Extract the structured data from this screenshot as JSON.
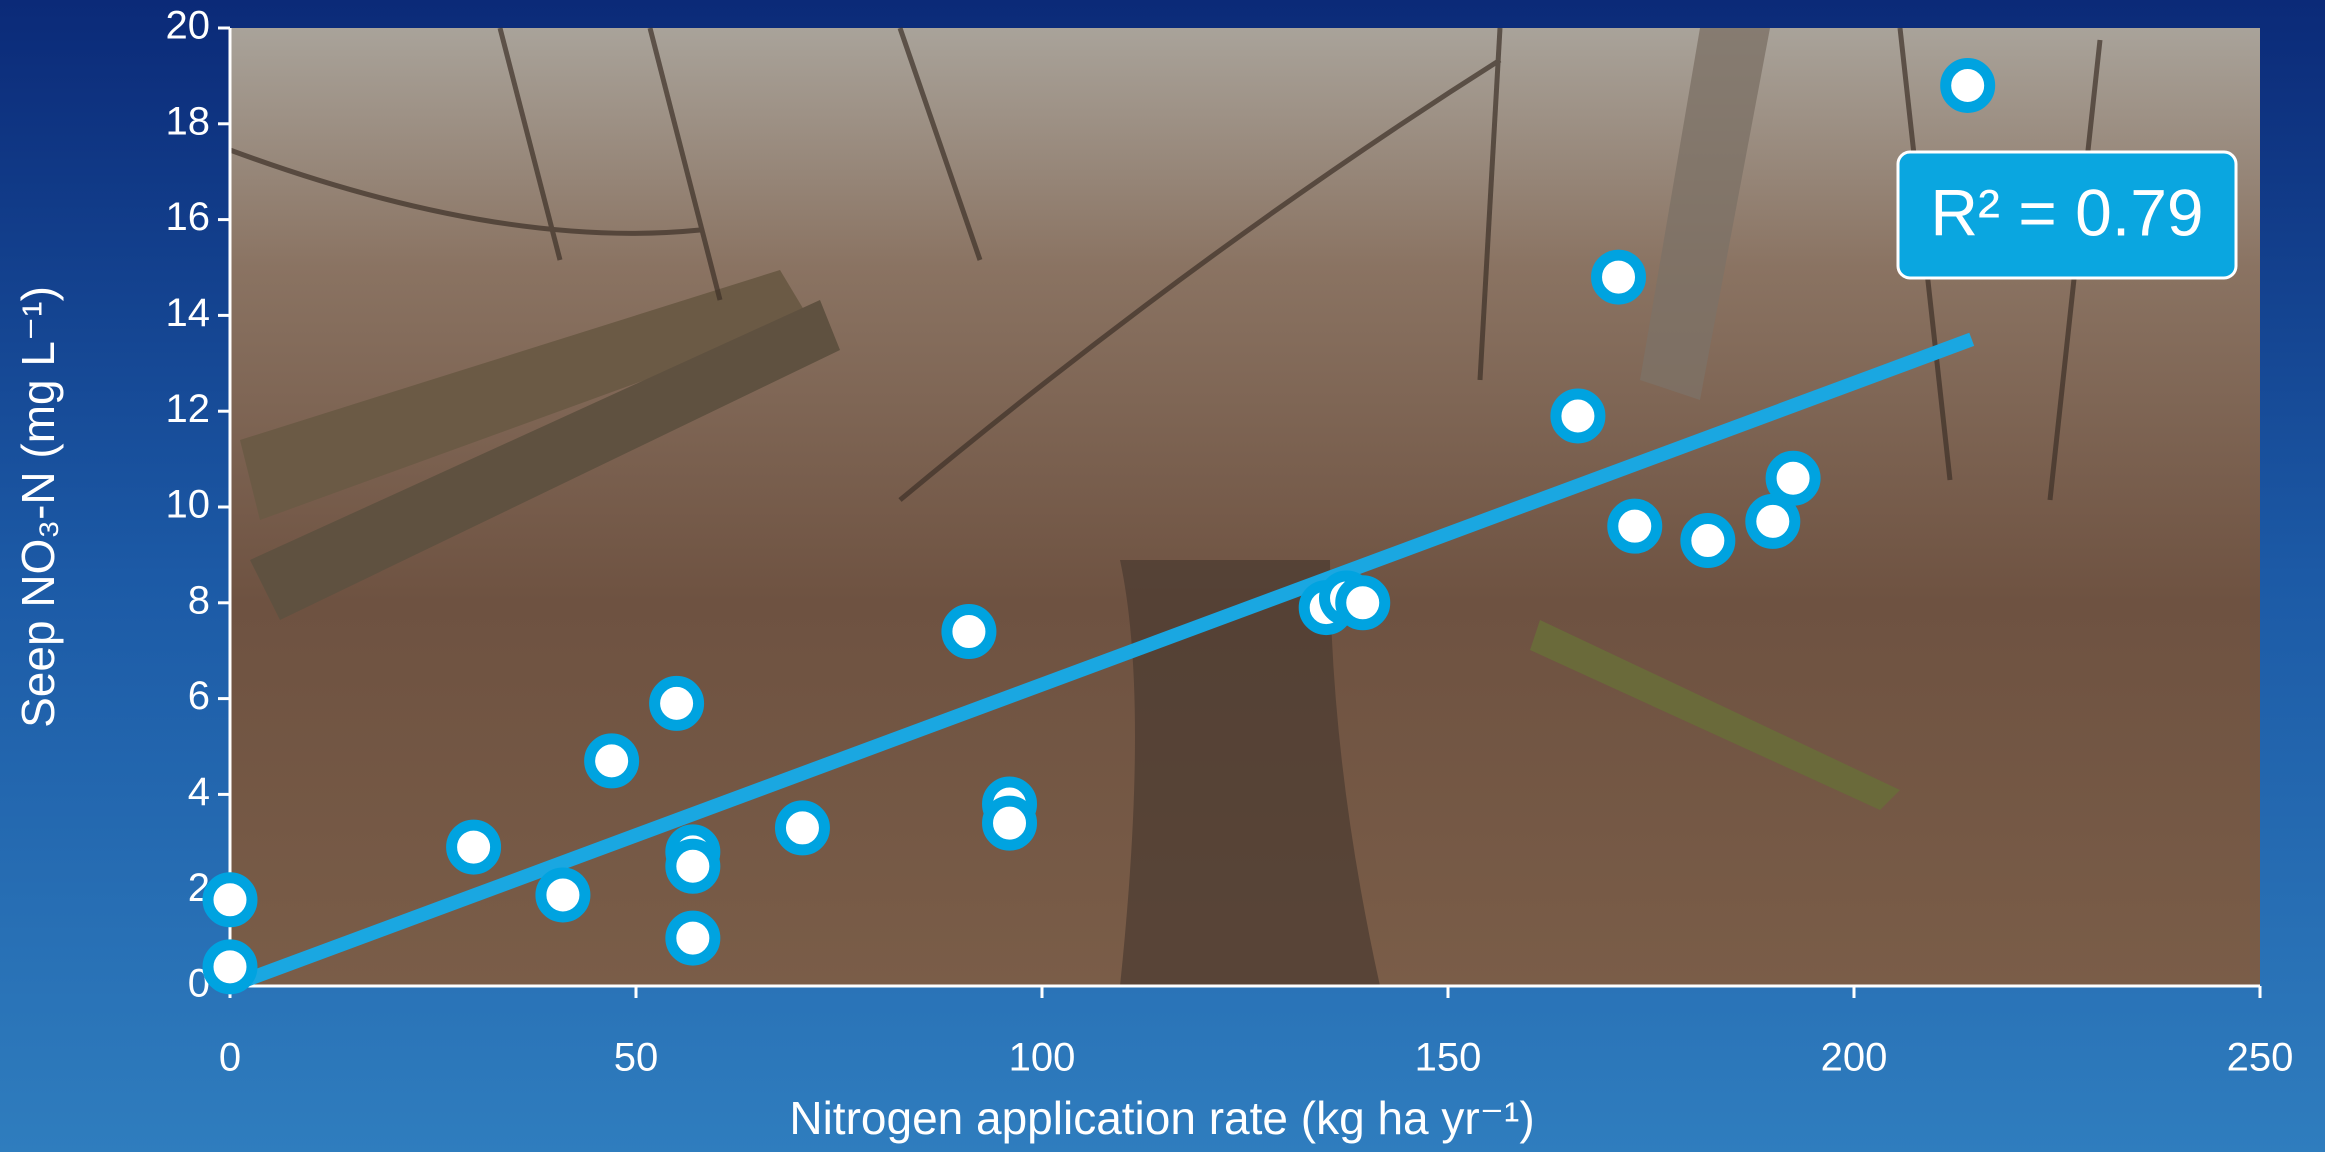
{
  "chart_data": {
    "type": "scatter",
    "x_label": "Nitrogen application rate (kg ha yr⁻¹)",
    "y_label": "Seep NO₃-N (mg L⁻¹)",
    "annotation": "R² = 0.79",
    "x": [
      0,
      0,
      30,
      41,
      47,
      55,
      57,
      57,
      57,
      70.5,
      91,
      96,
      96,
      135,
      137.5,
      139.5,
      166,
      171,
      173,
      182,
      190,
      192.5,
      214
    ],
    "values": [
      1.8,
      0.4,
      2.9,
      1.9,
      4.7,
      5.9,
      2.8,
      2.5,
      1.0,
      3.3,
      7.4,
      3.8,
      3.4,
      7.9,
      8.1,
      8.0,
      11.9,
      14.8,
      9.6,
      9.3,
      9.7,
      10.6,
      18.8
    ],
    "color": "#00a3e0",
    "trendline": {
      "x": [
        0,
        214.5
      ],
      "y": [
        0,
        13.5
      ],
      "color": "#1aa7e1"
    },
    "xlim": [
      0,
      250
    ],
    "xticks": [
      0,
      50,
      100,
      150,
      200,
      250
    ],
    "ylim": [
      0,
      20
    ],
    "yticks": [
      0,
      2,
      4,
      6,
      8,
      10,
      12,
      14,
      16,
      18,
      20
    ],
    "grid": false
  }
}
